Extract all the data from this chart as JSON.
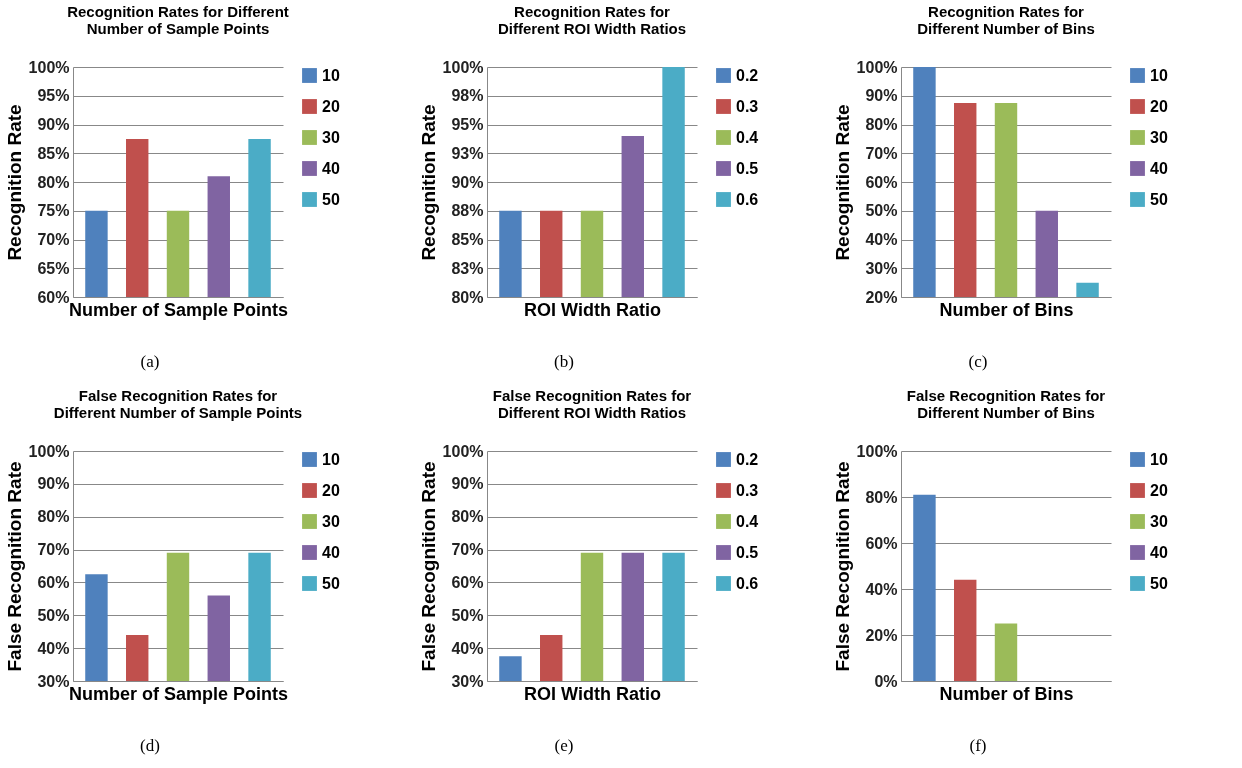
{
  "chart_data": [
    {
      "type": "bar",
      "title": "Recognition Rates for Different Number of Sample Points",
      "xlabel": "Number of Sample Points",
      "ylabel": "Recognition Rate",
      "annotations": [
        "(a)"
      ],
      "categories": [
        null
      ],
      "series": [
        {
          "name": "10",
          "color": "#4f81bd",
          "values": [
            75
          ]
        },
        {
          "name": "20",
          "color": "#c0504d",
          "values": [
            87.5
          ]
        },
        {
          "name": "30",
          "color": "#9bbb59",
          "values": [
            75
          ]
        },
        {
          "name": "40",
          "color": "#8064a2",
          "values": [
            81
          ]
        },
        {
          "name": "50",
          "color": "#4bacc6",
          "values": [
            87.5
          ]
        }
      ],
      "ylim": [
        60,
        100
      ],
      "yticks": [
        {
          "value": 60,
          "label": "60%"
        },
        {
          "value": 65,
          "label": "65%"
        },
        {
          "value": 70,
          "label": "70%"
        },
        {
          "value": 75,
          "label": "75%"
        },
        {
          "value": 80,
          "label": "80%"
        },
        {
          "value": 85,
          "label": "85%"
        },
        {
          "value": 90,
          "label": "90%"
        },
        {
          "value": 95,
          "label": "95%"
        },
        {
          "value": 100,
          "label": "100%"
        }
      ],
      "grid": "y",
      "legend": "right",
      "tick_labels": "y"
    },
    {
      "type": "bar",
      "title": "Recognition Rates for Different ROI Width Ratios",
      "xlabel": "ROI Width Ratio",
      "ylabel": "Recognition Rate",
      "annotations": [
        "(b)"
      ],
      "categories": [
        null
      ],
      "series": [
        {
          "name": "0.2",
          "color": "#4f81bd",
          "values": [
            87.5
          ]
        },
        {
          "name": "0.3",
          "color": "#c0504d",
          "values": [
            87.5
          ]
        },
        {
          "name": "0.4",
          "color": "#9bbb59",
          "values": [
            87.5
          ]
        },
        {
          "name": "0.5",
          "color": "#8064a2",
          "values": [
            94
          ]
        },
        {
          "name": "0.6",
          "color": "#4bacc6",
          "values": [
            100
          ]
        }
      ],
      "ylim": [
        80,
        100
      ],
      "yticks": [
        {
          "value": 80,
          "label": "80%"
        },
        {
          "value": 82.5,
          "label": "83%"
        },
        {
          "value": 85,
          "label": "85%"
        },
        {
          "value": 87.5,
          "label": "88%"
        },
        {
          "value": 90,
          "label": "90%"
        },
        {
          "value": 92.5,
          "label": "93%"
        },
        {
          "value": 95,
          "label": "95%"
        },
        {
          "value": 97.5,
          "label": "98%"
        },
        {
          "value": 100,
          "label": "100%"
        }
      ],
      "grid": "y",
      "legend": "right",
      "tick_labels": "y"
    },
    {
      "type": "bar",
      "title": "Recognition Rates for Different Number of Bins",
      "xlabel": "Number of Bins",
      "ylabel": "Recognition Rate",
      "annotations": [
        "(c)"
      ],
      "categories": [
        null
      ],
      "series": [
        {
          "name": "10",
          "color": "#4f81bd",
          "values": [
            100
          ]
        },
        {
          "name": "20",
          "color": "#c0504d",
          "values": [
            87.5
          ]
        },
        {
          "name": "30",
          "color": "#9bbb59",
          "values": [
            87.5
          ]
        },
        {
          "name": "40",
          "color": "#8064a2",
          "values": [
            50
          ]
        },
        {
          "name": "50",
          "color": "#4bacc6",
          "values": [
            25
          ]
        }
      ],
      "ylim": [
        20,
        100
      ],
      "yticks": [
        {
          "value": 20,
          "label": "20%"
        },
        {
          "value": 30,
          "label": "30%"
        },
        {
          "value": 40,
          "label": "40%"
        },
        {
          "value": 50,
          "label": "50%"
        },
        {
          "value": 60,
          "label": "60%"
        },
        {
          "value": 70,
          "label": "70%"
        },
        {
          "value": 80,
          "label": "80%"
        },
        {
          "value": 90,
          "label": "90%"
        },
        {
          "value": 100,
          "label": "100%"
        }
      ],
      "grid": "y",
      "legend": "right",
      "tick_labels": "y"
    },
    {
      "type": "bar",
      "title": "False Recognition Rates for Different Number of Sample Points",
      "xlabel": "Number of Sample Points",
      "ylabel": "False Recognition Rate",
      "annotations": [
        "(d)"
      ],
      "categories": [
        null
      ],
      "series": [
        {
          "name": "10",
          "color": "#4f81bd",
          "values": [
            62.5
          ]
        },
        {
          "name": "20",
          "color": "#c0504d",
          "values": [
            44
          ]
        },
        {
          "name": "30",
          "color": "#9bbb59",
          "values": [
            69
          ]
        },
        {
          "name": "40",
          "color": "#8064a2",
          "values": [
            56
          ]
        },
        {
          "name": "50",
          "color": "#4bacc6",
          "values": [
            69
          ]
        }
      ],
      "ylim": [
        30,
        100
      ],
      "yticks": [
        {
          "value": 30,
          "label": "30%"
        },
        {
          "value": 40,
          "label": "40%"
        },
        {
          "value": 50,
          "label": "50%"
        },
        {
          "value": 60,
          "label": "60%"
        },
        {
          "value": 70,
          "label": "70%"
        },
        {
          "value": 80,
          "label": "80%"
        },
        {
          "value": 90,
          "label": "90%"
        },
        {
          "value": 100,
          "label": "100%"
        }
      ],
      "grid": "y",
      "legend": "right",
      "tick_labels": "y"
    },
    {
      "type": "bar",
      "title": "False Recognition Rates for Different ROI Width Ratios",
      "xlabel": "ROI Width Ratio",
      "ylabel": "False Recognition Rate",
      "annotations": [
        "(e)"
      ],
      "categories": [
        null
      ],
      "series": [
        {
          "name": "0.2",
          "color": "#4f81bd",
          "values": [
            37.5
          ]
        },
        {
          "name": "0.3",
          "color": "#c0504d",
          "values": [
            44
          ]
        },
        {
          "name": "0.4",
          "color": "#9bbb59",
          "values": [
            69
          ]
        },
        {
          "name": "0.5",
          "color": "#8064a2",
          "values": [
            69
          ]
        },
        {
          "name": "0.6",
          "color": "#4bacc6",
          "values": [
            69
          ]
        }
      ],
      "ylim": [
        30,
        100
      ],
      "yticks": [
        {
          "value": 30,
          "label": "30%"
        },
        {
          "value": 40,
          "label": "40%"
        },
        {
          "value": 50,
          "label": "50%"
        },
        {
          "value": 60,
          "label": "60%"
        },
        {
          "value": 70,
          "label": "70%"
        },
        {
          "value": 80,
          "label": "80%"
        },
        {
          "value": 90,
          "label": "90%"
        },
        {
          "value": 100,
          "label": "100%"
        }
      ],
      "grid": "y",
      "legend": "right",
      "tick_labels": "y"
    },
    {
      "type": "bar",
      "title": "False Recognition Rates for Different Number of Bins",
      "xlabel": "Number of Bins",
      "ylabel": "False Recognition Rate",
      "annotations": [
        "(f)"
      ],
      "categories": [
        null
      ],
      "series": [
        {
          "name": "10",
          "color": "#4f81bd",
          "values": [
            81
          ]
        },
        {
          "name": "20",
          "color": "#c0504d",
          "values": [
            44
          ]
        },
        {
          "name": "30",
          "color": "#9bbb59",
          "values": [
            25
          ]
        },
        {
          "name": "40",
          "color": "#8064a2",
          "values": [
            0
          ]
        },
        {
          "name": "50",
          "color": "#4bacc6",
          "values": [
            0
          ]
        }
      ],
      "ylim": [
        0,
        100
      ],
      "yticks": [
        {
          "value": 0,
          "label": "0%"
        },
        {
          "value": 20,
          "label": "20%"
        },
        {
          "value": 40,
          "label": "40%"
        },
        {
          "value": 60,
          "label": "60%"
        },
        {
          "value": 80,
          "label": "80%"
        },
        {
          "value": 100,
          "label": "100%"
        }
      ],
      "grid": "y",
      "legend": "right",
      "tick_labels": "y"
    }
  ]
}
